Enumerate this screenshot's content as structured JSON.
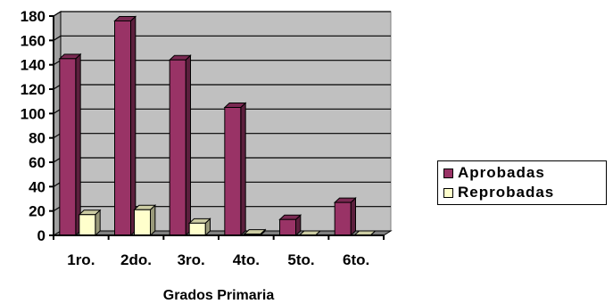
{
  "chart_data": {
    "type": "bar",
    "categories": [
      "1ro.",
      "2do.",
      "3ro.",
      "4to.",
      "5to.",
      "6to."
    ],
    "series": [
      {
        "name": "Aprobadas",
        "values": [
          145,
          176,
          144,
          105,
          13,
          27
        ],
        "color": "#993366"
      },
      {
        "name": "Reprobadas",
        "values": [
          17,
          21,
          10,
          1,
          0,
          0
        ],
        "color": "#ffffcc"
      }
    ],
    "title": "",
    "xlabel": "Grados Primaria",
    "ylabel": "",
    "ylim": [
      0,
      180
    ],
    "yticks": [
      0,
      20,
      40,
      60,
      80,
      100,
      120,
      140,
      160,
      180
    ],
    "grid": true,
    "plot_background": "#c0c0c0",
    "legend_position": "right"
  }
}
